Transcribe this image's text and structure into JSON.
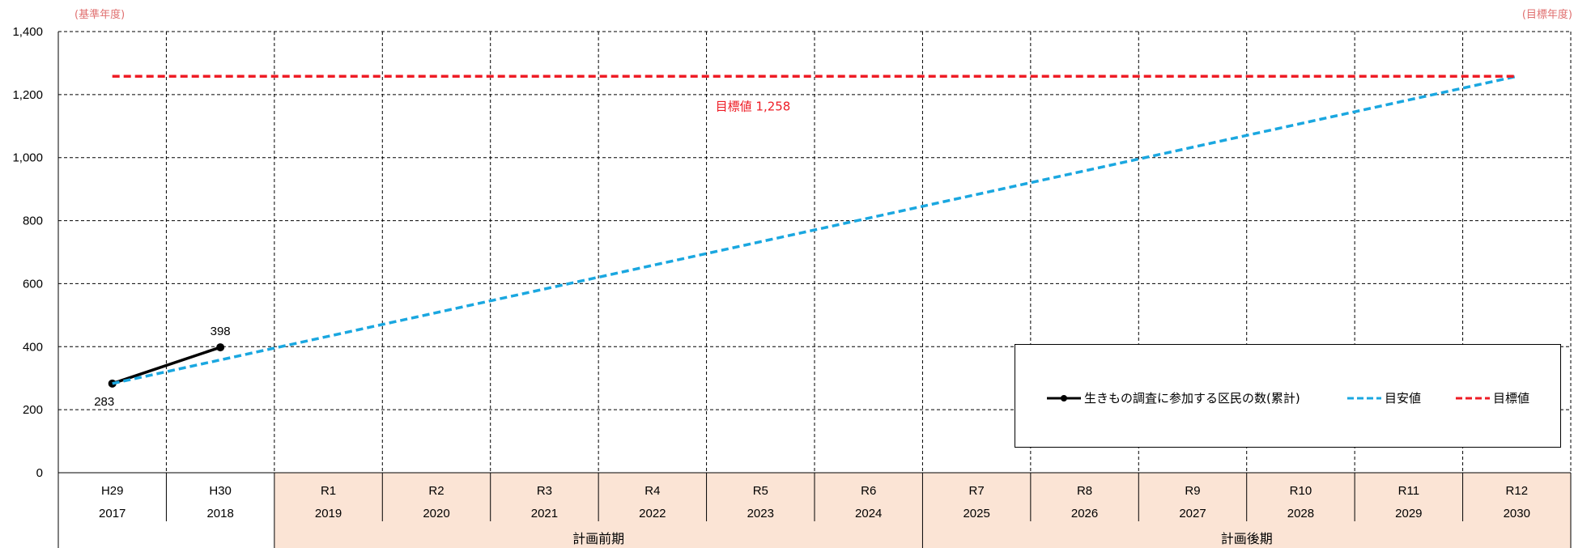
{
  "corner_notes": {
    "left": "(基準年度)",
    "right": "(目標年度)"
  },
  "chart_data": {
    "type": "line",
    "y_ticks": [
      "1,400",
      "1,200",
      "1,000",
      "800",
      "600",
      "400",
      "200",
      "0"
    ],
    "ylim": [
      0,
      1400
    ],
    "grid": true,
    "categories": [
      {
        "era": "H29",
        "year": "2017"
      },
      {
        "era": "H30",
        "year": "2018"
      },
      {
        "era": "R1",
        "year": "2019"
      },
      {
        "era": "R2",
        "year": "2020"
      },
      {
        "era": "R3",
        "year": "2021"
      },
      {
        "era": "R4",
        "year": "2022"
      },
      {
        "era": "R5",
        "year": "2023"
      },
      {
        "era": "R6",
        "year": "2024"
      },
      {
        "era": "R7",
        "year": "2025"
      },
      {
        "era": "R8",
        "year": "2026"
      },
      {
        "era": "R9",
        "year": "2027"
      },
      {
        "era": "R10",
        "year": "2028"
      },
      {
        "era": "R11",
        "year": "2029"
      },
      {
        "era": "R12",
        "year": "2030"
      }
    ],
    "periods": [
      {
        "label": "計画前期",
        "from": 2,
        "to": 7,
        "color": "#fbe4d5"
      },
      {
        "label": "計画後期",
        "from": 8,
        "to": 13,
        "color": "#fbe4d5"
      }
    ],
    "series": [
      {
        "name": "生きもの調査に参加する区民の数(累計)",
        "style": "solid-marker",
        "color": "#000000",
        "points": [
          {
            "index": 0,
            "value": 283,
            "label": "283"
          },
          {
            "index": 1,
            "value": 398,
            "label": "398"
          }
        ]
      },
      {
        "name": "目安値",
        "style": "dashed",
        "color": "#1aa7e0",
        "points": [
          {
            "index": 0,
            "value": 283
          },
          {
            "index": 13,
            "value": 1258
          }
        ]
      },
      {
        "name": "目標値",
        "style": "dashed",
        "color": "#ee1c25",
        "points": [
          {
            "index": 0,
            "value": 1258
          },
          {
            "index": 13,
            "value": 1258
          }
        ]
      }
    ],
    "annotations": [
      {
        "text": "目標値 1,258",
        "color": "#ee1c25"
      }
    ],
    "legend_position": "bottom-right"
  }
}
